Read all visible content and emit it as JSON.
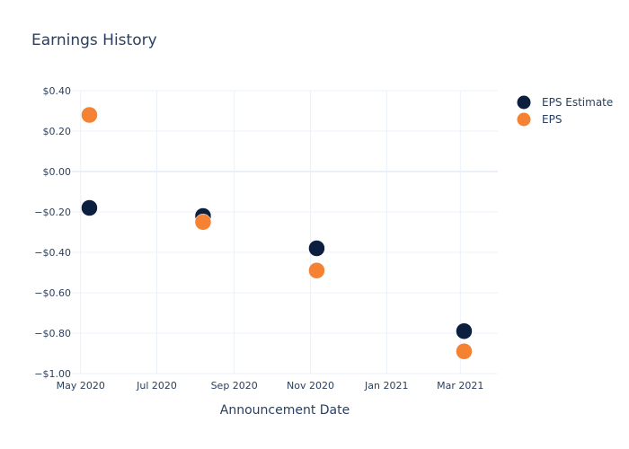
{
  "chart_data": {
    "type": "scatter",
    "title": "Earnings History",
    "xlabel": "Announcement Date",
    "ylabel": "",
    "x_ticks": [
      {
        "date": "2020-05-01",
        "label": "May 2020"
      },
      {
        "date": "2020-07-01",
        "label": "Jul 2020"
      },
      {
        "date": "2020-09-01",
        "label": "Sep 2020"
      },
      {
        "date": "2020-11-01",
        "label": "Nov 2020"
      },
      {
        "date": "2021-01-01",
        "label": "Jan 2021"
      },
      {
        "date": "2021-03-01",
        "label": "Mar 2021"
      }
    ],
    "y_ticks": [
      {
        "value": 0.4,
        "label": "$0.40"
      },
      {
        "value": 0.2,
        "label": "$0.20"
      },
      {
        "value": 0.0,
        "label": "$0.00"
      },
      {
        "value": -0.2,
        "label": "−$0.20"
      },
      {
        "value": -0.4,
        "label": "−$0.40"
      },
      {
        "value": -0.6,
        "label": "−$0.60"
      },
      {
        "value": -0.8,
        "label": "−$0.80"
      },
      {
        "value": -1.0,
        "label": "−$1.00"
      }
    ],
    "xlim": [
      "2020-04-24",
      "2021-03-31"
    ],
    "ylim": [
      -1.0,
      0.4
    ],
    "grid": true,
    "legend_position": "top-right",
    "series": [
      {
        "name": "EPS Estimate",
        "color": "#0c1f3f",
        "points": [
          {
            "x": "2020-05-08",
            "y": -0.18
          },
          {
            "x": "2020-08-07",
            "y": -0.22
          },
          {
            "x": "2020-11-06",
            "y": -0.38
          },
          {
            "x": "2021-03-04",
            "y": -0.79
          }
        ]
      },
      {
        "name": "EPS",
        "color": "#f58233",
        "points": [
          {
            "x": "2020-05-08",
            "y": 0.28
          },
          {
            "x": "2020-08-07",
            "y": -0.25
          },
          {
            "x": "2020-11-06",
            "y": -0.49
          },
          {
            "x": "2021-03-04",
            "y": -0.89
          }
        ]
      }
    ]
  }
}
